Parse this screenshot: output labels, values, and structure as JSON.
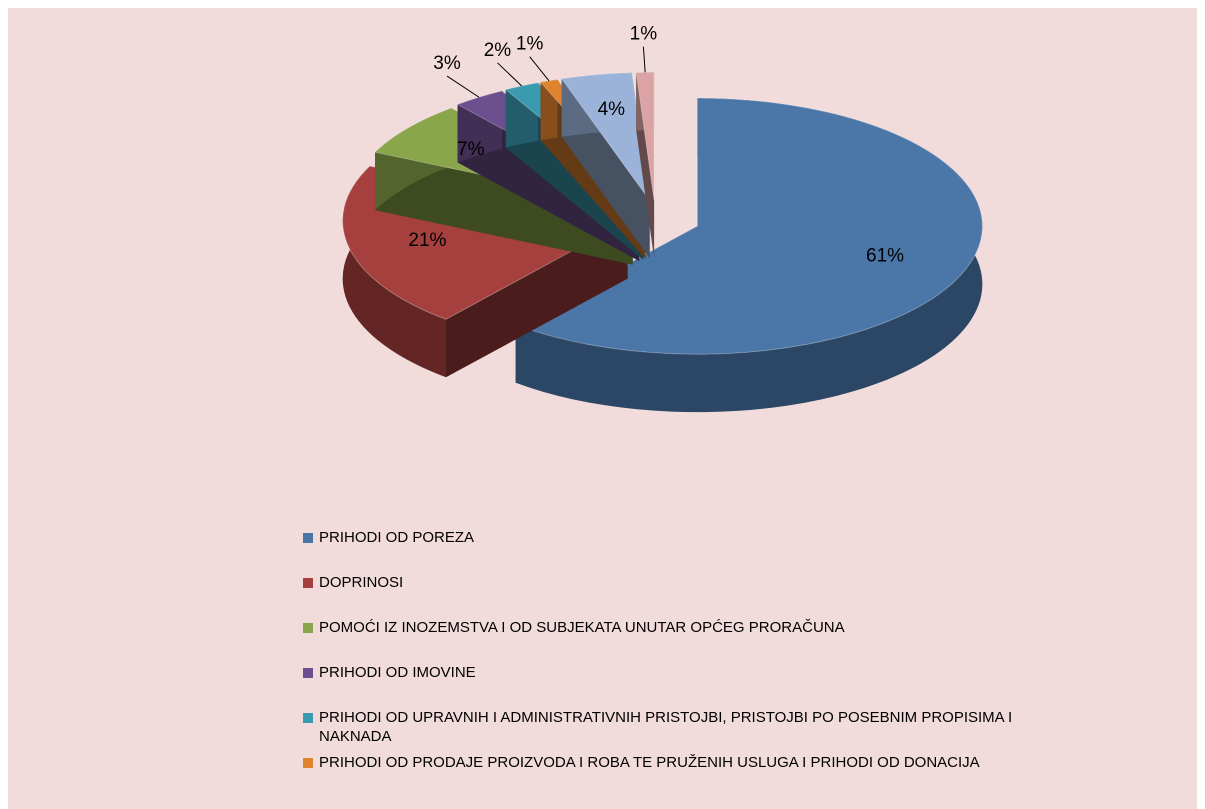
{
  "chart_data": {
    "type": "pie",
    "categories": [
      "PRIHODI OD POREZA",
      "DOPRINOSI",
      "POMOĆI IZ INOZEMSTVA I OD SUBJEKATA UNUTAR OPĆEG PRORAČUNA",
      "PRIHODI OD IMOVINE",
      "PRIHODI OD UPRAVNIH I ADMINISTRATIVNIH PRISTOJBI, PRISTOJBI PO POSEBNIM PROPISIMA I NAKNADA",
      "PRIHODI OD PRODAJE PROIZVODA I ROBA TE PRUŽENIH USLUGA I PRIHODI OD DONACIJA",
      null,
      null
    ],
    "values": [
      61,
      21,
      7,
      3,
      2,
      1,
      4,
      1
    ],
    "value_labels": [
      "61%",
      "21%",
      "7%",
      "3%",
      "2%",
      "1%",
      "4%",
      "1%"
    ],
    "colors": [
      "#4a76a8",
      "#a5403e",
      "#8aa64a",
      "#6c4f8e",
      "#3a9ab0",
      "#e0832f",
      "#9bb3d9",
      "#dba3a3"
    ],
    "legend": "bottom"
  }
}
